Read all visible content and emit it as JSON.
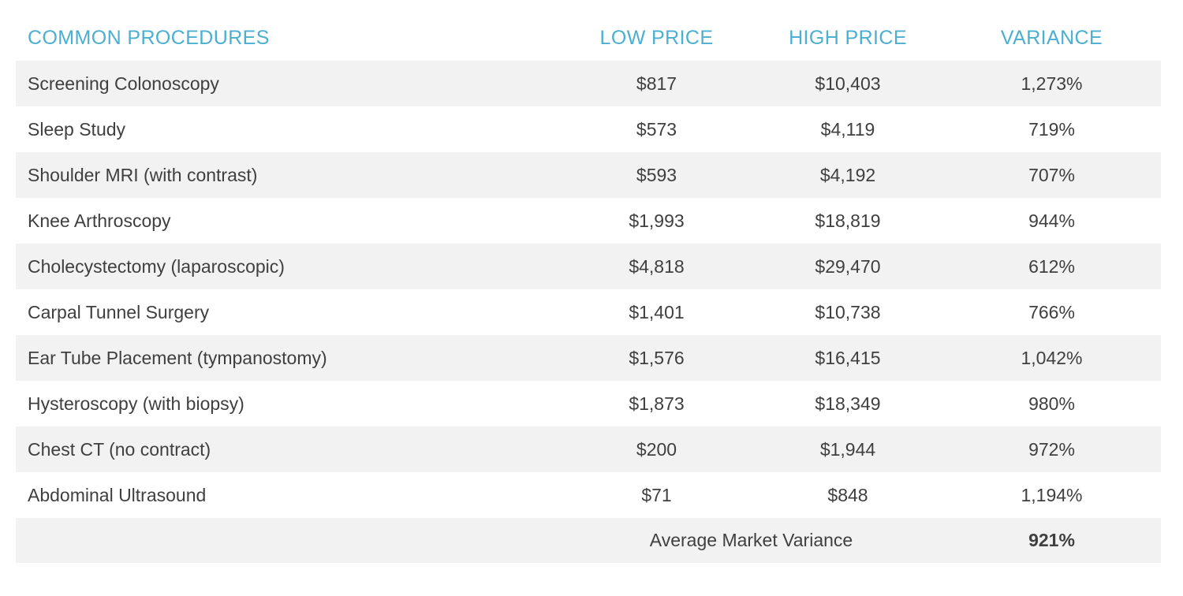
{
  "accent_color": "#4bafd2",
  "stripe_color": "#f2f2f2",
  "text_color": "#3f3f3f",
  "chart_data": {
    "type": "table",
    "columns": [
      "COMMON PROCEDURES",
      "LOW PRICE",
      "HIGH PRICE",
      "VARIANCE"
    ],
    "rows": [
      [
        "Screening Colonoscopy",
        "$817",
        "$10,403",
        "1,273%"
      ],
      [
        "Sleep Study",
        "$573",
        "$4,119",
        "719%"
      ],
      [
        "Shoulder MRI (with contrast)",
        "$593",
        "$4,192",
        "707%"
      ],
      [
        "Knee Arthroscopy",
        "$1,993",
        "$18,819",
        "944%"
      ],
      [
        "Cholecystectomy (laparoscopic)",
        "$4,818",
        "$29,470",
        "612%"
      ],
      [
        "Carpal Tunnel Surgery",
        "$1,401",
        "$10,738",
        "766%"
      ],
      [
        "Ear Tube Placement (tympanostomy)",
        "$1,576",
        "$16,415",
        "1,042%"
      ],
      [
        "Hysteroscopy (with biopsy)",
        "$1,873",
        "$18,349",
        "980%"
      ],
      [
        "Chest CT (no contract)",
        "$200",
        "$1,944",
        "972%"
      ],
      [
        "Abdominal Ultrasound",
        "$71",
        "$848",
        "1,194%"
      ]
    ],
    "footer": {
      "label": "Average Market Variance",
      "value": "921%"
    },
    "layout_hints": {
      "stripe_pattern": "first data row shaded, alternating",
      "value_alignment": "center",
      "header_style": "uppercase teal"
    }
  }
}
